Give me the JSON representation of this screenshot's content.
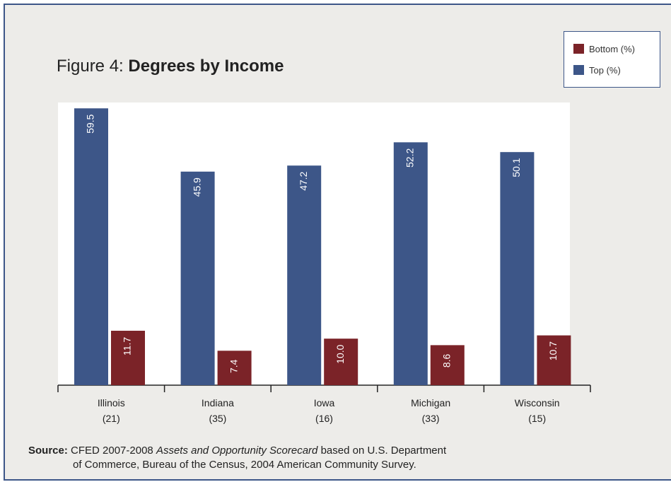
{
  "figure_label": "Figure 4:",
  "figure_title": "Degrees by Income",
  "legend": [
    {
      "label": "Bottom (%)",
      "color": "#7b2328"
    },
    {
      "label": "Top (%)",
      "color": "#3d5688"
    }
  ],
  "chart_data": {
    "type": "bar",
    "title": "Figure 4: Degrees by Income",
    "categories": [
      "Illinois",
      "Indiana",
      "Iowa",
      "Michigan",
      "Wisconsin"
    ],
    "category_sublabels": [
      "(21)",
      "(35)",
      "(16)",
      "(33)",
      "(15)"
    ],
    "series": [
      {
        "name": "Top (%)",
        "color": "#3d5688",
        "values": [
          59.5,
          45.9,
          47.2,
          52.2,
          50.1
        ],
        "labels": [
          "59.5",
          "45.9",
          "47.2",
          "52.2",
          "50.1"
        ]
      },
      {
        "name": "Bottom (%)",
        "color": "#7b2328",
        "values": [
          11.7,
          7.4,
          10.0,
          8.6,
          10.7
        ],
        "labels": [
          "11.7",
          "7.4",
          "10.0",
          "8.6",
          "10.7"
        ]
      }
    ],
    "ylim": [
      0,
      60
    ],
    "grid": false,
    "legend_position": "top-right",
    "data_labels": "inside-bar-rotated"
  },
  "source": {
    "label": "Source:",
    "text_before": "CFED 2007-2008",
    "italic": "Assets and Opportunity Scorecard",
    "text_after": "based on U.S. Department",
    "line2": "of Commerce, Bureau of the Census, 2004 American Community Survey."
  }
}
